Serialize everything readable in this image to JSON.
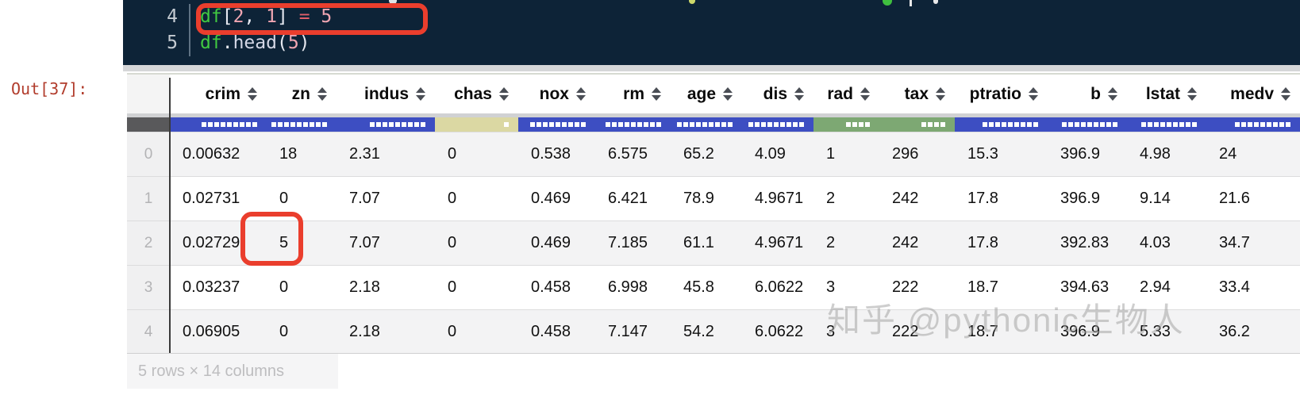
{
  "code_cell": {
    "lines": [
      {
        "number": "4",
        "highlighted": true,
        "tokens": [
          {
            "t": "df",
            "s": "green"
          },
          {
            "t": "[",
            "s": "plain"
          },
          {
            "t": "2",
            "s": "num"
          },
          {
            "t": ", ",
            "s": "plain"
          },
          {
            "t": "1",
            "s": "num"
          },
          {
            "t": "] ",
            "s": "plain"
          },
          {
            "t": "=",
            "s": "op"
          },
          {
            "t": " ",
            "s": "plain"
          },
          {
            "t": "5",
            "s": "num"
          }
        ]
      },
      {
        "number": "5",
        "highlighted": false,
        "tokens": [
          {
            "t": "df",
            "s": "green"
          },
          {
            "t": ".",
            "s": "plain"
          },
          {
            "t": "head",
            "s": "func"
          },
          {
            "t": "(",
            "s": "plain"
          },
          {
            "t": "5",
            "s": "num"
          },
          {
            "t": ")",
            "s": "plain"
          }
        ]
      }
    ]
  },
  "output": {
    "prompt": "Out[37]:"
  },
  "table": {
    "columns": [
      {
        "key": "crim",
        "label": "crim",
        "bar": "blue",
        "dots": 9
      },
      {
        "key": "zn",
        "label": "zn",
        "bar": "blue",
        "dots": 9
      },
      {
        "key": "indus",
        "label": "indus",
        "bar": "blue",
        "dots": 9
      },
      {
        "key": "chas",
        "label": "chas",
        "bar": "khaki",
        "dots": 1
      },
      {
        "key": "nox",
        "label": "nox",
        "bar": "blue",
        "dots": 9
      },
      {
        "key": "rm",
        "label": "rm",
        "bar": "blue",
        "dots": 9
      },
      {
        "key": "age",
        "label": "age",
        "bar": "blue",
        "dots": 9
      },
      {
        "key": "dis",
        "label": "dis",
        "bar": "blue",
        "dots": 9
      },
      {
        "key": "rad",
        "label": "rad",
        "bar": "green",
        "dots": 4
      },
      {
        "key": "tax",
        "label": "tax",
        "bar": "green",
        "dots": 4
      },
      {
        "key": "ptratio",
        "label": "ptratio",
        "bar": "blue",
        "dots": 9
      },
      {
        "key": "b",
        "label": "b",
        "bar": "blue",
        "dots": 9
      },
      {
        "key": "lstat",
        "label": "lstat",
        "bar": "blue",
        "dots": 9
      },
      {
        "key": "medv",
        "label": "medv",
        "bar": "blue",
        "dots": 9
      }
    ],
    "rows": [
      {
        "index": "0",
        "values": [
          "0.00632",
          "18",
          "2.31",
          "0",
          "0.538",
          "6.575",
          "65.2",
          "4.09",
          "1",
          "296",
          "15.3",
          "396.9",
          "4.98",
          "24"
        ]
      },
      {
        "index": "1",
        "values": [
          "0.02731",
          "0",
          "7.07",
          "0",
          "0.469",
          "6.421",
          "78.9",
          "4.9671",
          "2",
          "242",
          "17.8",
          "396.9",
          "9.14",
          "21.6"
        ]
      },
      {
        "index": "2",
        "values": [
          "0.02729",
          "5",
          "7.07",
          "0",
          "0.469",
          "7.185",
          "61.1",
          "4.9671",
          "2",
          "242",
          "17.8",
          "392.83",
          "4.03",
          "34.7"
        ]
      },
      {
        "index": "3",
        "values": [
          "0.03237",
          "0",
          "2.18",
          "0",
          "0.458",
          "6.998",
          "45.8",
          "6.0622",
          "3",
          "222",
          "18.7",
          "394.63",
          "2.94",
          "33.4"
        ]
      },
      {
        "index": "4",
        "values": [
          "0.06905",
          "0",
          "2.18",
          "0",
          "0.458",
          "7.147",
          "54.2",
          "6.0622",
          "3",
          "222",
          "18.7",
          "396.9",
          "5.33",
          "36.2"
        ]
      }
    ],
    "caption": "5 rows × 14 columns",
    "sort_icon": "sort-arrows-icon"
  },
  "watermark": {
    "text": "知乎 @pythonic生物人"
  },
  "highlights": {
    "code_line": "df[2, 1] = 5",
    "cell": {
      "row": "2",
      "column": "zn",
      "value": "5"
    }
  },
  "colors": {
    "code_bg": "#0d2337",
    "token_green": "#41c941",
    "token_plain": "#e6e8f0",
    "token_func": "#d4d7e6",
    "token_num": "#f0a6b2",
    "token_op": "#e05f6b",
    "line_number": "#c4cbd2",
    "highlight_red": "#ea3e2d",
    "bar_blue": "#3d4ec2",
    "bar_green": "#7da873",
    "bar_khaki": "#dbd8a3",
    "bar_index": "#59595b",
    "out_prompt": "#b13c2c"
  }
}
